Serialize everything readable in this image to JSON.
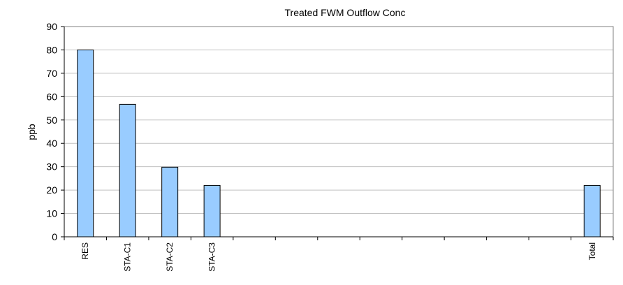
{
  "chart_data": {
    "type": "bar",
    "title": "Treated FWM Outflow Conc",
    "xlabel": "",
    "ylabel": "ppb",
    "ylim": [
      0,
      90
    ],
    "yticks": [
      0,
      10,
      20,
      30,
      40,
      50,
      60,
      70,
      80,
      90
    ],
    "categories": [
      "RES",
      "STA-C1",
      "STA-C2",
      "STA-C3",
      "",
      "",
      "",
      "",
      "",
      "",
      "",
      "",
      "Total"
    ],
    "values": [
      80,
      56.7,
      29.8,
      22,
      null,
      null,
      null,
      null,
      null,
      null,
      null,
      null,
      22
    ],
    "grid": true,
    "legend": "none",
    "colors": {
      "bar_fill": "#99ccff",
      "bar_stroke": "#000000",
      "grid": "#c0c0c0",
      "axis": "#000000",
      "plot_bg": "#ffffff"
    }
  }
}
